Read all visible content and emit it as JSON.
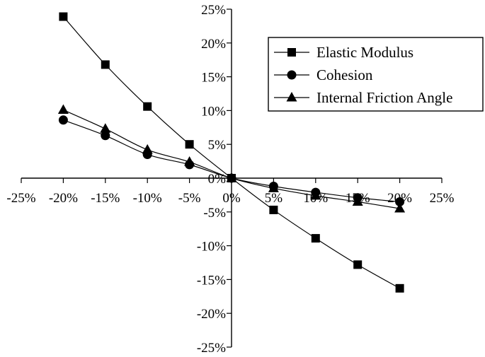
{
  "chart_data": {
    "type": "line",
    "x": [
      -20,
      -15,
      -10,
      -5,
      0,
      5,
      10,
      15,
      20
    ],
    "series": [
      {
        "name": "Elastic Modulus",
        "marker": "square",
        "values": [
          23.9,
          16.8,
          10.6,
          5.0,
          0,
          -4.7,
          -8.9,
          -12.8,
          -16.3
        ]
      },
      {
        "name": "Cohesion",
        "marker": "circle",
        "values": [
          8.6,
          6.3,
          3.5,
          2.0,
          0,
          -1.2,
          -2.1,
          -2.9,
          -3.5
        ]
      },
      {
        "name": "Internal Friction Angle",
        "marker": "triangle",
        "values": [
          10.1,
          7.3,
          4.2,
          2.4,
          0,
          -1.5,
          -2.6,
          -3.5,
          -4.5
        ]
      }
    ],
    "xlim": [
      -25,
      25
    ],
    "ylim": [
      -25,
      25
    ],
    "x_ticks": [
      -25,
      -20,
      -15,
      -10,
      -5,
      0,
      5,
      10,
      15,
      20,
      25
    ],
    "y_ticks": [
      -25,
      -20,
      -15,
      -10,
      -5,
      0,
      5,
      10,
      15,
      20,
      25
    ],
    "x_tick_labels": [
      "-25%",
      "-20%",
      "-15%",
      "-10%",
      "-5%",
      "0%",
      "5%",
      "10%",
      "15%",
      "20%",
      "25%"
    ],
    "y_tick_labels": [
      "-25%",
      "-20%",
      "-15%",
      "-10%",
      "-5%",
      "0%",
      "5%",
      "10%",
      "15%",
      "20%",
      "25%"
    ],
    "title": "",
    "xlabel": "",
    "ylabel": "",
    "grid": false,
    "legend_position": "top-right",
    "line_color": "#000000"
  }
}
